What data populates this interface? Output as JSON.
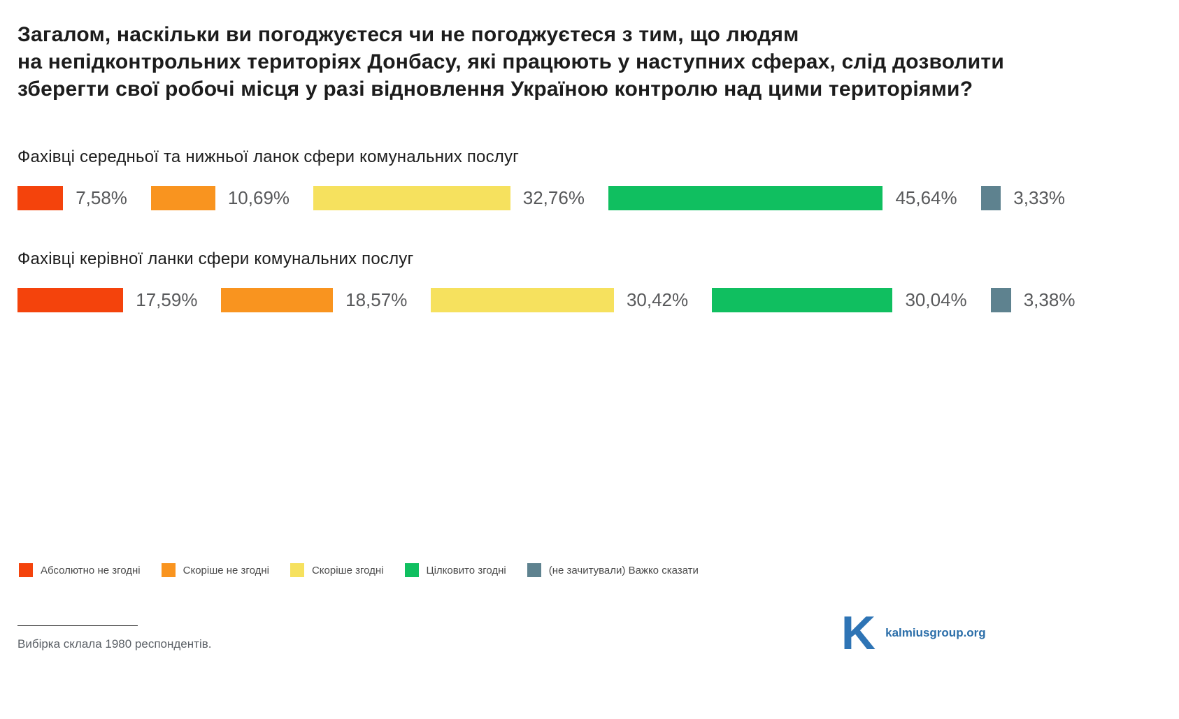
{
  "title": "Загалом, наскільки ви погоджуєтеся чи не погоджуєтеся з тим, що людям\nна непідконтрольних територіях Донбасу, які працюють у наступних сферах, слід дозволити\nзберегти свої робочі місця у разі відновлення Україною контролю над цими територіями?",
  "chart_data": {
    "type": "bar",
    "orientation": "horizontal",
    "unit": "%",
    "xlim": [
      0,
      100
    ],
    "legend_position": "bottom",
    "categories": [
      "Фахівці середньої та нижньої ланок сфери комунальних послуг",
      "Фахівці керівної ланки сфери комунальних послуг"
    ],
    "series": [
      {
        "name": "Абсолютно не згодні",
        "color": "#F4430C",
        "values": [
          7.58,
          17.59
        ],
        "labels": [
          "7,58%",
          "17,59%"
        ]
      },
      {
        "name": "Скоріше не згодні",
        "color": "#F9941F",
        "values": [
          10.69,
          18.57
        ],
        "labels": [
          "10,69%",
          "18,57%"
        ]
      },
      {
        "name": "Скоріше згодні",
        "color": "#F6E15E",
        "values": [
          32.76,
          30.42
        ],
        "labels": [
          "32,76%",
          "30,42%"
        ]
      },
      {
        "name": "Цілковито згодні",
        "color": "#10BF60",
        "values": [
          45.64,
          30.04
        ],
        "labels": [
          "45,64%",
          "30,04%"
        ]
      },
      {
        "name": "(не зачитували) Важко сказати",
        "color": "#5E828F",
        "values": [
          3.33,
          3.38
        ],
        "labels": [
          "3,33%",
          "3,38%"
        ]
      }
    ]
  },
  "footer": {
    "sample_note": "Вибірка склала 1980 респондентів."
  },
  "branding": {
    "logo_letter": "K",
    "site": "kalmiusgroup.org"
  }
}
